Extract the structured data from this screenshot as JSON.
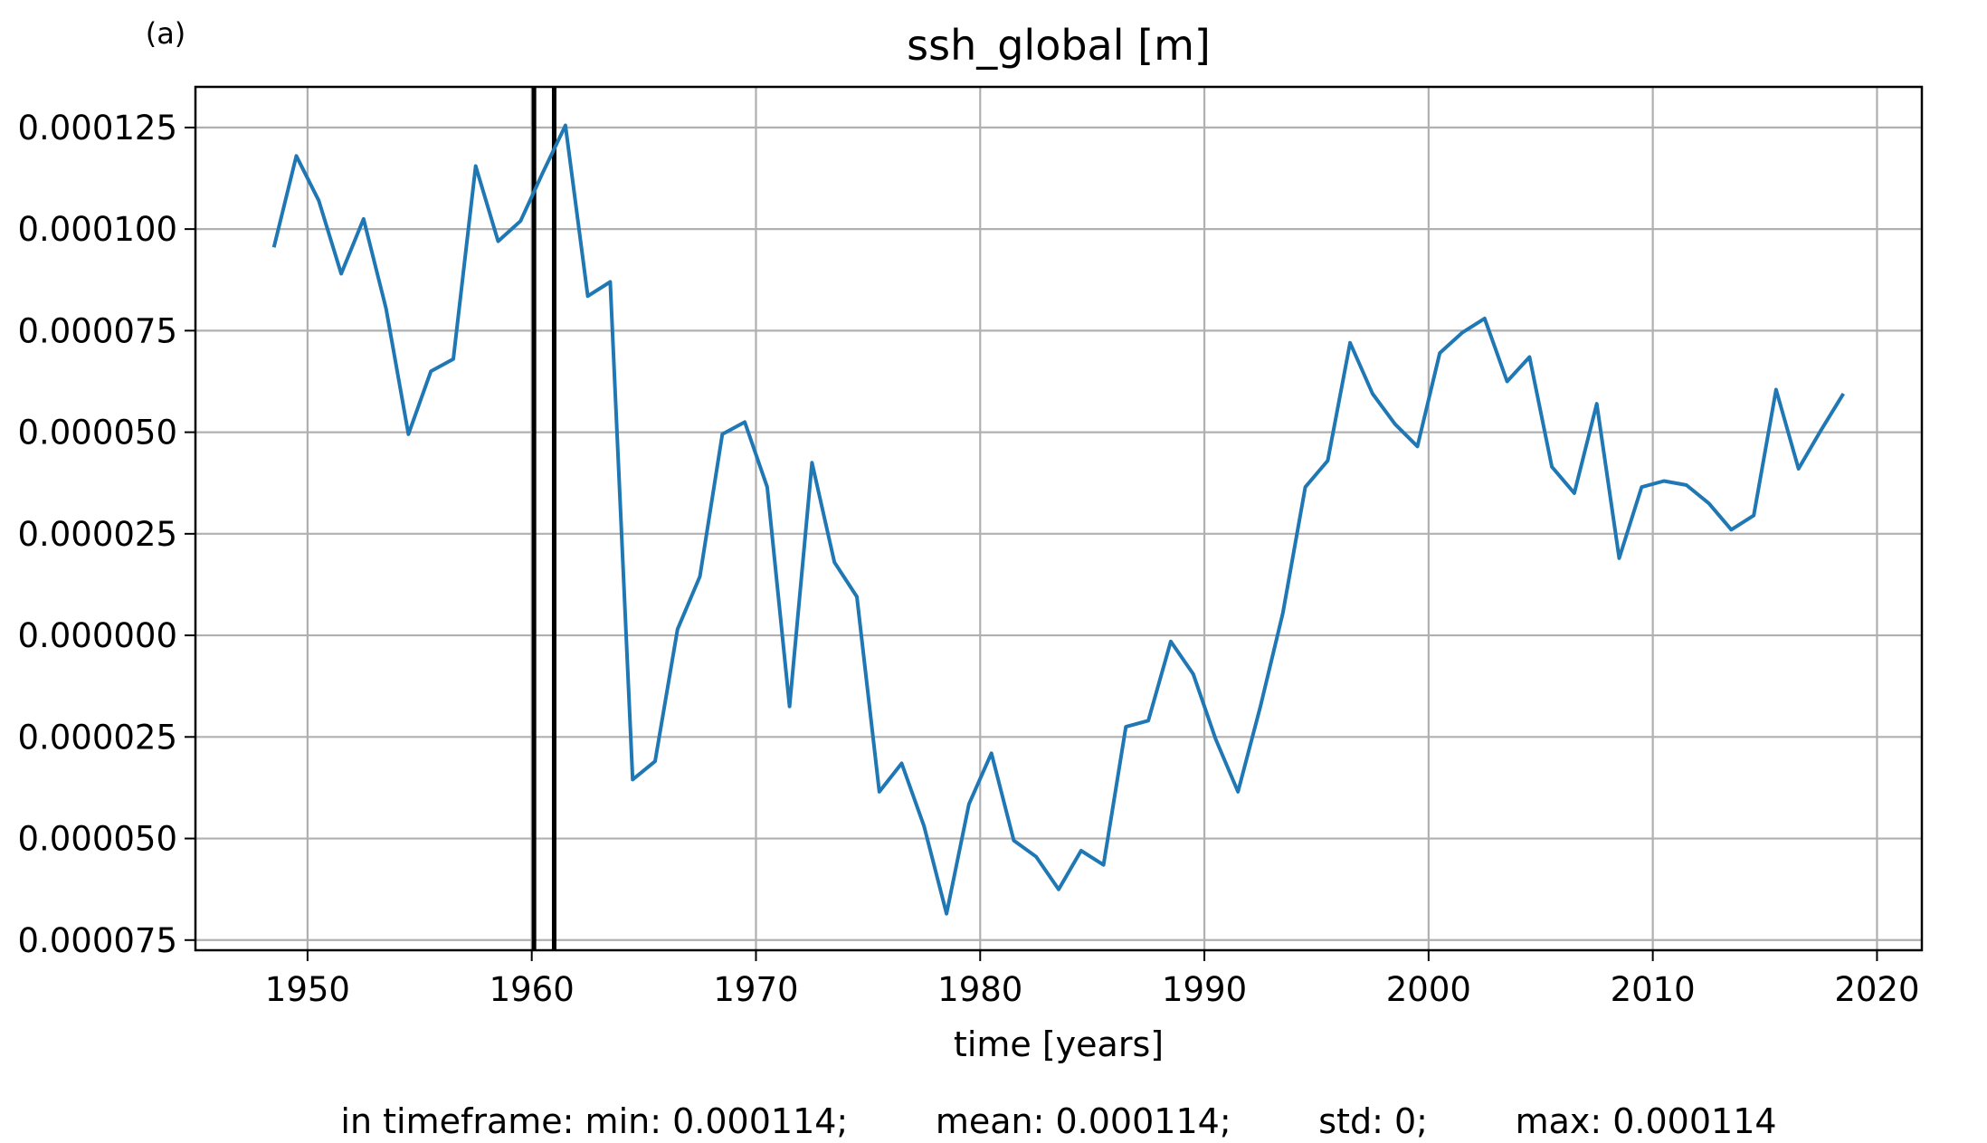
{
  "panel_label": "(a)",
  "footer": "in timeframe: min: 0.000114;        mean: 0.000114;        std: 0;        max: 0.000114",
  "chart_data": {
    "type": "line",
    "title": "ssh_global [m]",
    "xlabel": "time [years]",
    "ylabel": "",
    "xlim": [
      1945.0,
      2022.0
    ],
    "ylim": [
      -7.75e-05,
      0.000135
    ],
    "grid": true,
    "legend": "none",
    "xticks": [
      1950,
      1960,
      1970,
      1980,
      1990,
      2000,
      2010,
      2020
    ],
    "xtick_labels": [
      "1950",
      "1960",
      "1970",
      "1980",
      "1990",
      "2000",
      "2010",
      "2020"
    ],
    "yticks": [
      0.000125,
      0.0001,
      7.5e-05,
      5e-05,
      2.5e-05,
      0.0,
      -2.5e-05,
      -5e-05,
      -7.5e-05
    ],
    "ytick_labels": [
      "0.000125",
      "0.000100",
      "0.000075",
      "0.000050",
      "0.000025",
      "0.000000",
      "0.000025",
      "0.000050",
      "0.000075"
    ],
    "vlines": [
      1960.1,
      1961.0
    ],
    "colors": {
      "series": "#1f77b4",
      "vline": "#000000",
      "grid": "#b0b0b0"
    },
    "series": [
      {
        "x": [
          1948.5,
          1949.5,
          1950.5,
          1951.5,
          1952.5,
          1953.5,
          1954.5,
          1955.5,
          1956.5,
          1957.5,
          1958.5,
          1959.5,
          1960.5,
          1961.5,
          1962.5,
          1963.5,
          1964.5,
          1965.5,
          1966.5,
          1967.5,
          1968.5,
          1969.5,
          1970.5,
          1971.5,
          1972.5,
          1973.5,
          1974.5,
          1975.5,
          1976.5,
          1977.5,
          1978.5,
          1979.5,
          1980.5,
          1981.5,
          1982.5,
          1983.5,
          1984.5,
          1985.5,
          1986.5,
          1987.5,
          1988.5,
          1989.5,
          1990.5,
          1991.5,
          1992.5,
          1993.5,
          1994.5,
          1995.5,
          1996.5,
          1997.5,
          1998.5,
          1999.5,
          2000.5,
          2001.5,
          2002.5,
          2003.5,
          2004.5,
          2005.5,
          2006.5,
          2007.5,
          2008.5,
          2009.5,
          2010.5,
          2011.5,
          2012.5,
          2013.5,
          2014.5,
          2015.5,
          2016.5,
          2017.5,
          2018.5
        ],
        "y": [
          9.55e-05,
          0.000118,
          0.000107,
          8.9e-05,
          0.0001025,
          8.05e-05,
          4.95e-05,
          6.5e-05,
          6.8e-05,
          0.0001155,
          9.7e-05,
          0.000102,
          0.000114,
          0.0001255,
          8.35e-05,
          8.7e-05,
          -3.55e-05,
          -3.1e-05,
          1.5e-06,
          1.45e-05,
          4.95e-05,
          5.25e-05,
          3.65e-05,
          -1.75e-05,
          4.25e-05,
          1.8e-05,
          9.5e-06,
          -3.85e-05,
          -3.15e-05,
          -4.7e-05,
          -6.85e-05,
          -4.15e-05,
          -2.9e-05,
          -5.05e-05,
          -5.45e-05,
          -6.25e-05,
          -5.3e-05,
          -5.65e-05,
          -2.25e-05,
          -2.1e-05,
          -1.5e-06,
          -9.5e-06,
          -2.55e-05,
          -3.85e-05,
          -1.75e-05,
          5.5e-06,
          3.65e-05,
          4.3e-05,
          7.2e-05,
          5.95e-05,
          5.2e-05,
          4.65e-05,
          6.95e-05,
          7.45e-05,
          7.8e-05,
          6.25e-05,
          6.85e-05,
          4.15e-05,
          3.5e-05,
          5.7e-05,
          1.9e-05,
          3.65e-05,
          3.8e-05,
          3.7e-05,
          3.25e-05,
          2.6e-05,
          2.95e-05,
          6.05e-05,
          4.1e-05,
          5.05e-05,
          5.95e-05
        ]
      }
    ]
  }
}
